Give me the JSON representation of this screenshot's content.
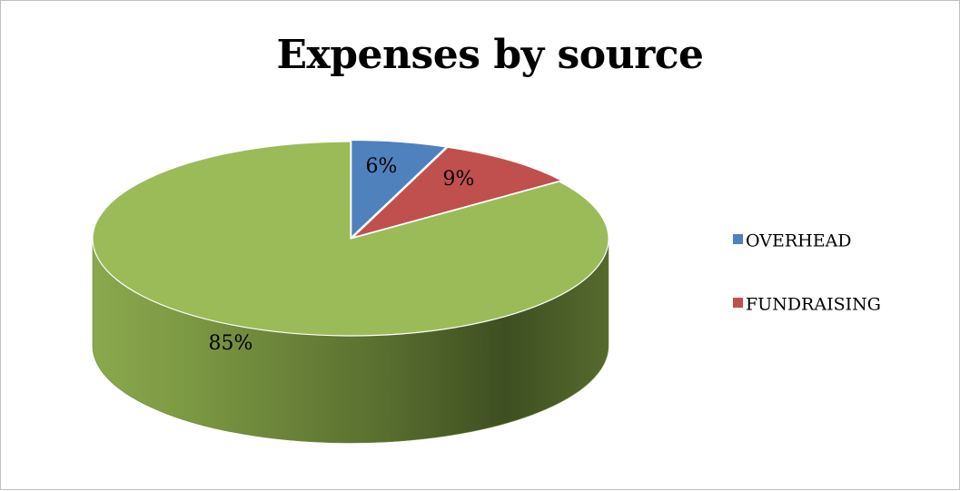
{
  "chart_data": {
    "type": "pie",
    "title": "Expenses by source",
    "slices": [
      {
        "name": "OVERHEAD",
        "value": 6,
        "label": "6%",
        "color": "#4f81bd"
      },
      {
        "name": "FUNDRAISING",
        "value": 9,
        "label": "9%",
        "color": "#c0504d"
      },
      {
        "name": "",
        "value": 85,
        "label": "85%",
        "color": "#9bbb59"
      }
    ],
    "legend": {
      "placement": "right",
      "entries": [
        {
          "name": "OVERHEAD",
          "color": "#4f81bd"
        },
        {
          "name": "FUNDRAISING",
          "color": "#c0504d"
        }
      ]
    },
    "style": "3d-exploded"
  }
}
